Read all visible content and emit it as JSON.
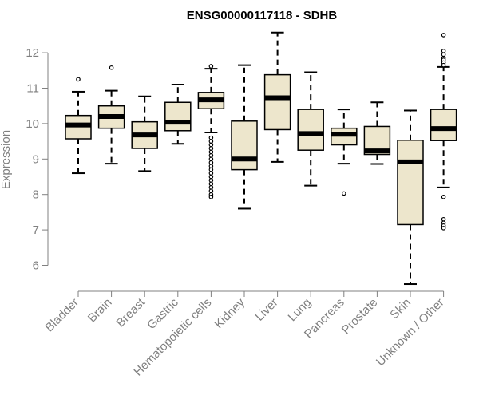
{
  "chart_data": {
    "type": "boxplot",
    "title": "ENSG00000117118 - SDHB",
    "ylabel": "Expression",
    "xlabel": "",
    "ylim": [
      5.4,
      12.6
    ],
    "yticks": [
      6,
      7,
      8,
      9,
      10,
      11,
      12
    ],
    "grid": false,
    "legend": "none",
    "box_fill": "#ede6cc",
    "stroke_color": "#000000",
    "axis_color": "#808080",
    "categories": [
      "Bladder",
      "Brain",
      "Breast",
      "Gastric",
      "Hematopoietic cells",
      "Kidney",
      "Liver",
      "Lung",
      "Pancreas",
      "Prostate",
      "Skin",
      "Unknown / Other"
    ],
    "boxes": [
      {
        "whisker_low": 8.6,
        "q1": 9.57,
        "median": 9.96,
        "q3": 10.23,
        "whisker_high": 10.9,
        "outliers": [
          11.25
        ]
      },
      {
        "whisker_low": 8.87,
        "q1": 9.87,
        "median": 10.2,
        "q3": 10.5,
        "whisker_high": 10.93,
        "outliers": [
          11.58
        ]
      },
      {
        "whisker_low": 8.66,
        "q1": 9.3,
        "median": 9.68,
        "q3": 10.05,
        "whisker_high": 10.77,
        "outliers": []
      },
      {
        "whisker_low": 9.43,
        "q1": 9.8,
        "median": 10.04,
        "q3": 10.6,
        "whisker_high": 11.1,
        "outliers": []
      },
      {
        "whisker_low": 9.75,
        "q1": 10.42,
        "median": 10.67,
        "q3": 10.88,
        "whisker_high": 11.55,
        "outliers": [
          11.62,
          9.6,
          9.5,
          9.4,
          9.3,
          9.2,
          9.1,
          9.0,
          8.9,
          8.8,
          8.7,
          8.6,
          8.5,
          8.4,
          8.3,
          8.2,
          8.1,
          8.0,
          7.93
        ]
      },
      {
        "whisker_low": 7.6,
        "q1": 8.7,
        "median": 9.0,
        "q3": 10.07,
        "whisker_high": 11.65,
        "outliers": []
      },
      {
        "whisker_low": 8.92,
        "q1": 9.83,
        "median": 10.73,
        "q3": 11.38,
        "whisker_high": 12.57,
        "outliers": []
      },
      {
        "whisker_low": 8.25,
        "q1": 9.25,
        "median": 9.72,
        "q3": 10.4,
        "whisker_high": 11.45,
        "outliers": []
      },
      {
        "whisker_low": 8.87,
        "q1": 9.4,
        "median": 9.7,
        "q3": 9.87,
        "whisker_high": 10.4,
        "outliers": [
          8.03
        ]
      },
      {
        "whisker_low": 8.86,
        "q1": 9.13,
        "median": 9.23,
        "q3": 9.92,
        "whisker_high": 10.6,
        "outliers": []
      },
      {
        "whisker_low": 5.47,
        "q1": 7.15,
        "median": 8.92,
        "q3": 9.53,
        "whisker_high": 10.37,
        "outliers": []
      },
      {
        "whisker_low": 8.2,
        "q1": 9.52,
        "median": 9.86,
        "q3": 10.4,
        "whisker_high": 11.6,
        "outliers": [
          12.5,
          12.05,
          11.95,
          11.85,
          11.8,
          11.72,
          11.65,
          7.93,
          7.3,
          7.2,
          7.12,
          7.05
        ]
      }
    ]
  }
}
